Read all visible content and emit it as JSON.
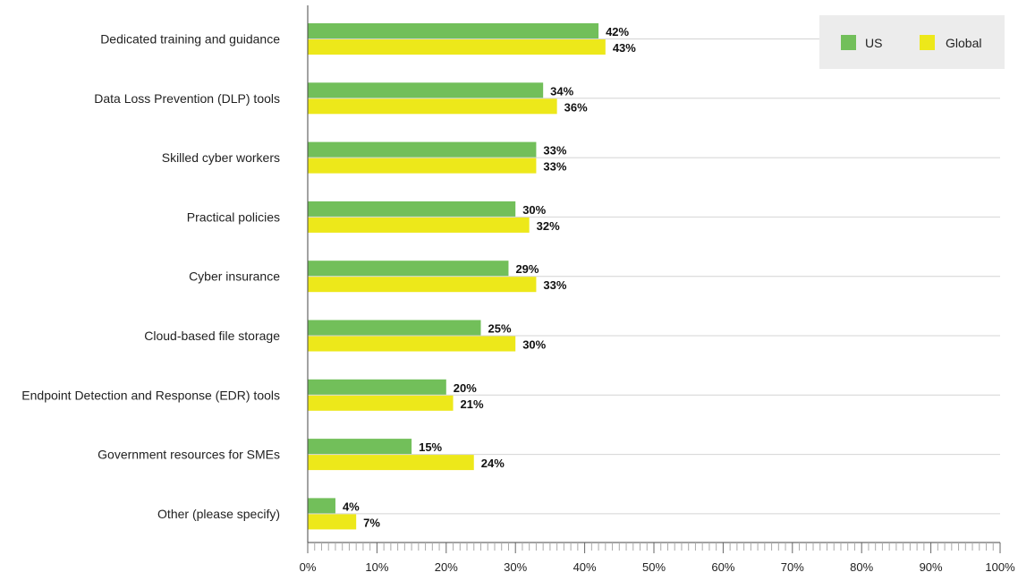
{
  "chart_data": {
    "type": "bar",
    "orientation": "horizontal",
    "categories": [
      "Dedicated training and guidance",
      "Data Loss Prevention (DLP) tools",
      "Skilled cyber workers",
      "Practical policies",
      "Cyber insurance",
      "Cloud-based file storage",
      "Endpoint Detection and Response (EDR) tools",
      "Government resources for SMEs",
      "Other (please specify)"
    ],
    "series": [
      {
        "name": "US",
        "color": "#72bf5a",
        "values": [
          42,
          34,
          33,
          30,
          29,
          25,
          20,
          15,
          4
        ]
      },
      {
        "name": "Global",
        "color": "#ede81a",
        "values": [
          43,
          36,
          33,
          32,
          33,
          30,
          21,
          24,
          7
        ]
      }
    ],
    "xlim": [
      0,
      100
    ],
    "xticks": [
      0,
      10,
      20,
      30,
      40,
      50,
      60,
      70,
      80,
      90,
      100
    ],
    "value_suffix": "%",
    "grid": true,
    "legend_position": "top-right"
  }
}
